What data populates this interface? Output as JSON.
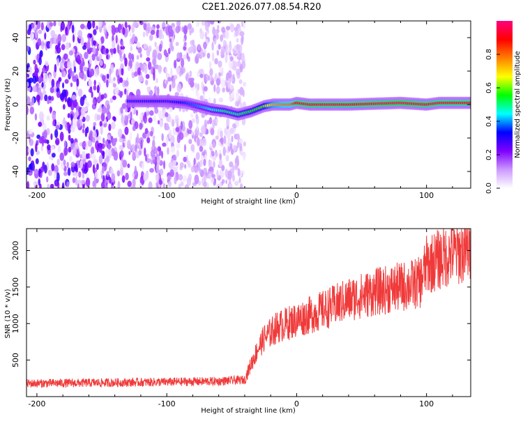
{
  "title": "C2E1.2026.077.08.54.R20",
  "chart_data": [
    {
      "type": "heatmap",
      "title": "C2E1.2026.077.08.54.R20",
      "xlabel": "Height of straight line (km)",
      "ylabel": "Frequency (Hz)",
      "xlim": [
        -208,
        134
      ],
      "ylim": [
        -50,
        50
      ],
      "xticks": [
        -200,
        -100,
        0,
        100
      ],
      "xtick_labels": [
        "-200",
        "-100",
        "0",
        "100"
      ],
      "yticks": [
        -40,
        -20,
        0,
        20,
        40
      ],
      "ytick_labels": [
        "-40",
        "-20",
        "0",
        "20",
        "40"
      ],
      "colorbar": {
        "label": "Normalized spectral amplitude",
        "range": [
          0,
          1
        ],
        "ticks": [
          0.0,
          0.2,
          0.4,
          0.6,
          0.8
        ],
        "tick_labels": [
          "0.0",
          "0.2",
          "0.4",
          "0.6",
          "0.8"
        ],
        "colors": [
          "#ffffff",
          "#cc99ff",
          "#7f00ff",
          "#0000ff",
          "#00ffff",
          "#00ff00",
          "#ffff00",
          "#ff8000",
          "#ff0000",
          "#ff007f"
        ]
      },
      "ridge": {
        "x": [
          -130,
          -100,
          -85,
          -75,
          -65,
          -55,
          -45,
          -35,
          -25,
          -18,
          -10,
          -5,
          0,
          10,
          40,
          80,
          100,
          110,
          134
        ],
        "freq": [
          2,
          2,
          1,
          -1,
          -3,
          -4,
          -6,
          -4,
          -1,
          0,
          0,
          0,
          1,
          0,
          0,
          1,
          0,
          1,
          1
        ],
        "amplitude": [
          0.3,
          0.3,
          0.35,
          0.4,
          0.45,
          0.5,
          0.5,
          0.55,
          0.6,
          0.75,
          0.8,
          0.8,
          0.9,
          0.92,
          0.9,
          0.95,
          0.92,
          0.9,
          0.9
        ]
      },
      "noise_region": {
        "x_from": -208,
        "x_to": -40
      }
    },
    {
      "type": "line",
      "xlabel": "Height of straight line (km)",
      "ylabel": "SNR (10 * v/v)",
      "xlim": [
        -208,
        134
      ],
      "ylim": [
        0,
        2300
      ],
      "xticks": [
        -200,
        -100,
        0,
        100
      ],
      "xtick_labels": [
        "-200",
        "-100",
        "0",
        "100"
      ],
      "yticks": [
        500,
        1000,
        1500,
        2000
      ],
      "ytick_labels": [
        "500",
        "1000",
        "1500",
        "2000"
      ],
      "color": "#f03a3a",
      "x": [
        -208,
        -150,
        -100,
        -60,
        -40,
        -35,
        -30,
        -25,
        -15,
        0,
        20,
        40,
        60,
        80,
        95,
        100,
        110,
        120,
        134
      ],
      "y": [
        180,
        190,
        200,
        210,
        230,
        450,
        650,
        800,
        950,
        1050,
        1180,
        1330,
        1430,
        1500,
        1560,
        1800,
        1880,
        1960,
        2000
      ]
    }
  ]
}
